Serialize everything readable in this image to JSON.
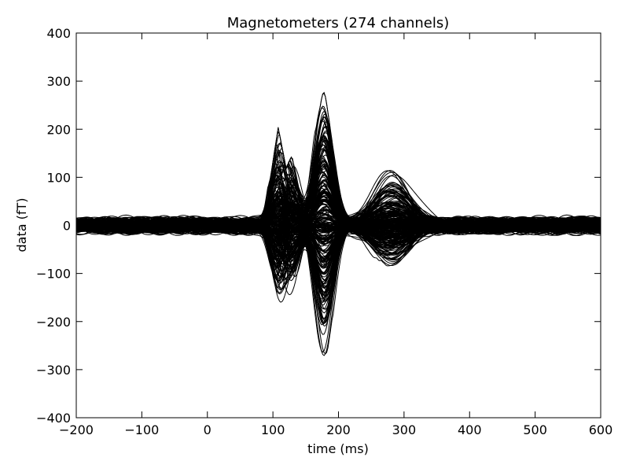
{
  "chart_data": {
    "type": "line",
    "title": "Magnetometers (274 channels)",
    "xlabel": "time (ms)",
    "ylabel": "data (fT)",
    "xlim": [
      -200,
      600
    ],
    "ylim": [
      -400,
      400
    ],
    "xticks": [
      -200,
      -100,
      0,
      100,
      200,
      300,
      400,
      500,
      600
    ],
    "xtick_labels": [
      "−200",
      "−100",
      "0",
      "100",
      "200",
      "300",
      "400",
      "500",
      "600"
    ],
    "yticks": [
      -400,
      -300,
      -200,
      -100,
      0,
      100,
      200,
      300,
      400
    ],
    "ytick_labels": [
      "−400",
      "−300",
      "−200",
      "−100",
      "0",
      "100",
      "200",
      "300",
      "400"
    ],
    "grid": false,
    "legend": "none",
    "line_color": "#000000",
    "n_channels": 274,
    "envelope": {
      "x": [
        -200,
        -155,
        -110,
        -50,
        0,
        60,
        95,
        108,
        120,
        130,
        150,
        165,
        178,
        190,
        210,
        240,
        270,
        280,
        300,
        330,
        380,
        420,
        470,
        520,
        560,
        600
      ],
      "upper": [
        22,
        50,
        35,
        28,
        28,
        40,
        90,
        205,
        120,
        150,
        120,
        200,
        290,
        180,
        60,
        60,
        120,
        132,
        100,
        60,
        35,
        40,
        55,
        40,
        40,
        30
      ],
      "lower": [
        -22,
        -50,
        -55,
        -40,
        -40,
        -55,
        -110,
        -170,
        -150,
        -150,
        -100,
        -200,
        -310,
        -200,
        -60,
        -55,
        -80,
        -95,
        -70,
        -50,
        -40,
        -55,
        -40,
        -35,
        -30,
        -30
      ]
    },
    "components": [
      {
        "center": 108,
        "width": 11,
        "peak_max": 205,
        "peak_min": -170
      },
      {
        "center": 128,
        "width": 13,
        "peak_max": 150,
        "peak_min": -150
      },
      {
        "center": 178,
        "width": 14,
        "peak_max": 290,
        "peak_min": -310
      },
      {
        "center": 280,
        "width": 28,
        "peak_max": 132,
        "peak_min": -95
      }
    ]
  }
}
